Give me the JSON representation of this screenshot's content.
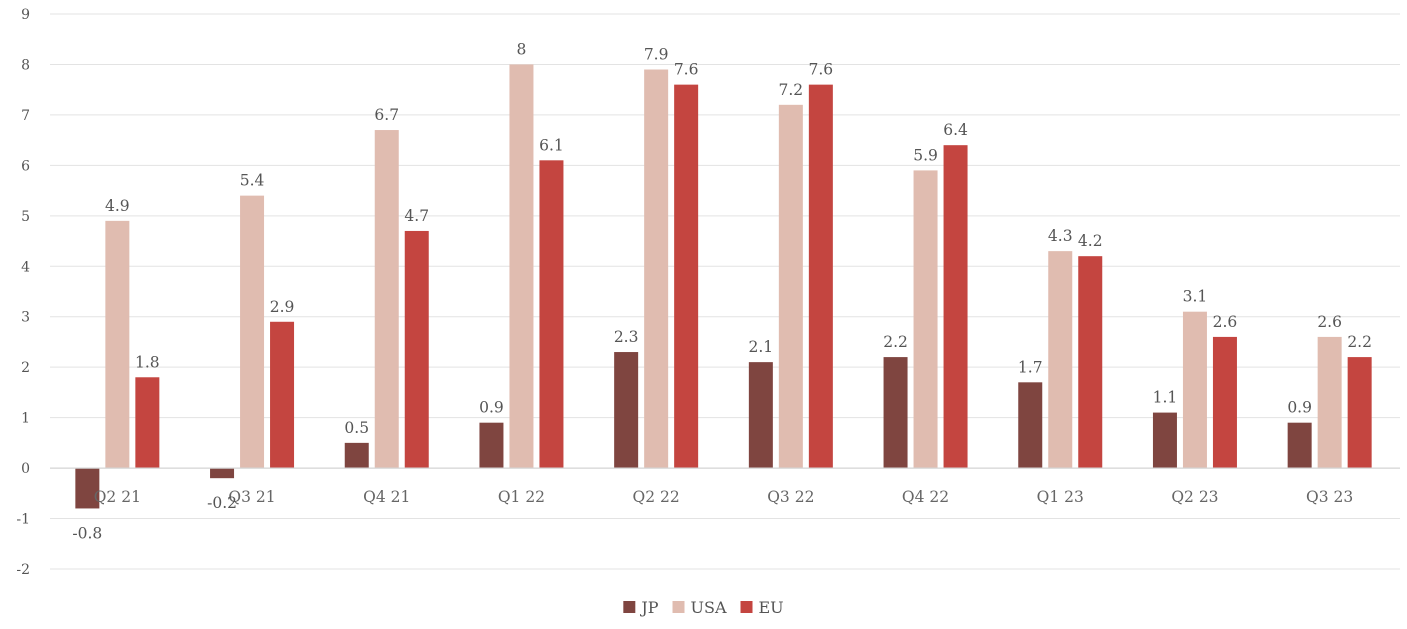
{
  "chart_data": {
    "type": "bar",
    "categories": [
      "Q2 21",
      "Q3 21",
      "Q4 21",
      "Q1 22",
      "Q2 22",
      "Q3 22",
      "Q4 22",
      "Q1 23",
      "Q2 23",
      "Q3 23"
    ],
    "series": [
      {
        "name": "JP",
        "color": "#7f4540",
        "values": [
          -0.8,
          -0.2,
          0.5,
          0.9,
          2.3,
          2.1,
          2.2,
          1.7,
          1.1,
          0.9
        ]
      },
      {
        "name": "USA",
        "color": "#e0bcb0",
        "values": [
          4.9,
          5.4,
          6.7,
          8,
          7.9,
          7.2,
          5.9,
          4.3,
          3.1,
          2.6
        ]
      },
      {
        "name": "EU",
        "color": "#c44540",
        "values": [
          1.8,
          2.9,
          4.7,
          6.1,
          7.6,
          7.6,
          6.4,
          4.2,
          2.6,
          2.2
        ]
      }
    ],
    "title": "",
    "xlabel": "",
    "ylabel": "",
    "ylim": [
      -2,
      9
    ],
    "yticks": [
      "-2",
      "-1",
      "0",
      "1",
      "2",
      "3",
      "4",
      "5",
      "6",
      "7",
      "8",
      "9"
    ],
    "grid": true,
    "legend": "bottom-center",
    "data_labels": true,
    "colors": {
      "grid": "#e3e3e3",
      "axis": "#d4d4d4",
      "text": "#595959"
    }
  }
}
